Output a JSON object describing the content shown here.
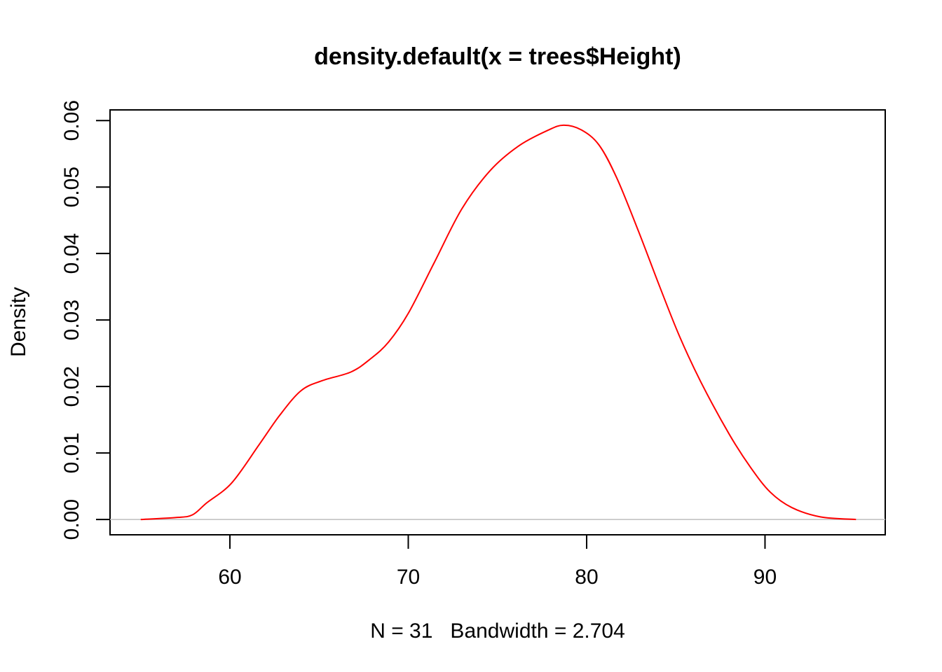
{
  "chart_data": {
    "type": "line",
    "title": "density.default(x = trees$Height)",
    "xlabel": "N = 31   Bandwidth = 2.704",
    "ylabel": "Density",
    "xlim": [
      53.28,
      96.74
    ],
    "ylim": [
      -0.0023,
      0.0616
    ],
    "xticks": [
      60,
      70,
      80,
      90
    ],
    "xtick_labels": [
      "60",
      "70",
      "80",
      "90"
    ],
    "yticks": [
      0,
      0.01,
      0.02,
      0.03,
      0.04,
      0.05,
      0.06
    ],
    "ytick_labels": [
      "0.00",
      "0.01",
      "0.02",
      "0.03",
      "0.04",
      "0.05",
      "0.06"
    ],
    "grid": false,
    "zero_line": true,
    "series": [
      {
        "name": "density",
        "color": "#ff0000",
        "x": [
          55.0,
          57.0,
          57.9,
          58.7,
          60.1,
          61.65,
          62.8,
          64.0,
          65.2,
          66.8,
          67.9,
          68.9,
          70.0,
          71.45,
          73.0,
          74.6,
          76.2,
          77.8,
          78.7,
          79.7,
          80.7,
          81.7,
          82.9,
          84.1,
          85.2,
          86.4,
          88.0,
          89.2,
          90.3,
          91.5,
          93.1,
          95.1
        ],
        "y": [
          0.0,
          0.0003,
          0.0007,
          0.0025,
          0.0055,
          0.0113,
          0.0157,
          0.0194,
          0.0209,
          0.0222,
          0.0242,
          0.0267,
          0.031,
          0.0386,
          0.0467,
          0.0525,
          0.0562,
          0.0585,
          0.0593,
          0.0586,
          0.0563,
          0.0513,
          0.0434,
          0.035,
          0.0276,
          0.0207,
          0.0128,
          0.0078,
          0.0041,
          0.0018,
          0.0004,
          0.0
        ]
      }
    ]
  }
}
